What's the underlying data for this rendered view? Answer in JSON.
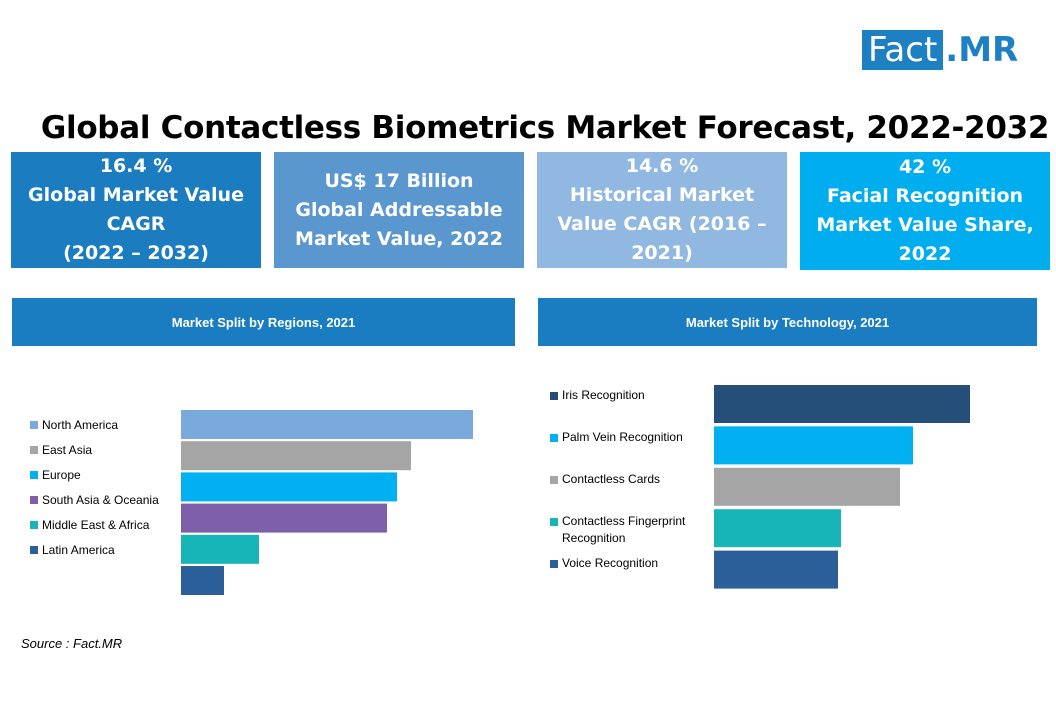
{
  "logo": {
    "fact": "Fact",
    "mr": ".MR"
  },
  "title": "Global Contactless Biometrics Market Forecast, 2022-2032",
  "kpis": [
    {
      "text": "16.4 %\nGlobal Market Value\nCAGR\n(2022 – 2032)",
      "color": "#1b7cbf"
    },
    {
      "text": "US$ 17 Billion\nGlobal Addressable\nMarket Value, 2022",
      "color": "#5b97cf"
    },
    {
      "text": "14.6 %\nHistorical Market\nValue CAGR (2016 –\n2021)",
      "color": "#91b8e1"
    },
    {
      "text": "42 %\nFacial Recognition\nMarket Value Share,\n2022",
      "color": "#00adee"
    }
  ],
  "chart_data": [
    {
      "type": "bar",
      "orientation": "horizontal",
      "title": "Market Split by Regions, 2021",
      "categories": [
        "North America",
        "East Asia",
        "Europe",
        "South Asia & Oceania",
        "Middle East & Africa",
        "Latin America"
      ],
      "values": [
        29.2,
        23.0,
        21.6,
        20.6,
        7.8,
        4.3
      ],
      "colors": [
        "#7aaadb",
        "#a5a5a5",
        "#00b0f0",
        "#7e5faa",
        "#17b5b5",
        "#2b5f99"
      ],
      "axis_labels": "none",
      "grid": false,
      "legend": "left"
    },
    {
      "type": "bar",
      "orientation": "horizontal",
      "title": "Market Split by Technology, 2021",
      "categories": [
        "Iris Recognition",
        "Palm Vein Recognition",
        "Contactless Cards",
        "Contactless Fingerprint Recognition",
        "Voice Recognition"
      ],
      "values": [
        25.6,
        19.9,
        18.6,
        12.7,
        12.4
      ],
      "colors": [
        "#254e79",
        "#00b0f0",
        "#a5a5a5",
        "#17b5b5",
        "#2b5f99"
      ],
      "axis_labels": "none",
      "grid": false,
      "legend": "left"
    }
  ],
  "legend_2_lines": [
    [
      "Iris Recognition"
    ],
    [
      "Palm Vein Recognition"
    ],
    [
      "Contactless Cards"
    ],
    [
      "Contactless Fingerprint",
      "Recognition"
    ],
    [
      "Voice Recognition"
    ]
  ],
  "source": "Source : Fact.MR"
}
